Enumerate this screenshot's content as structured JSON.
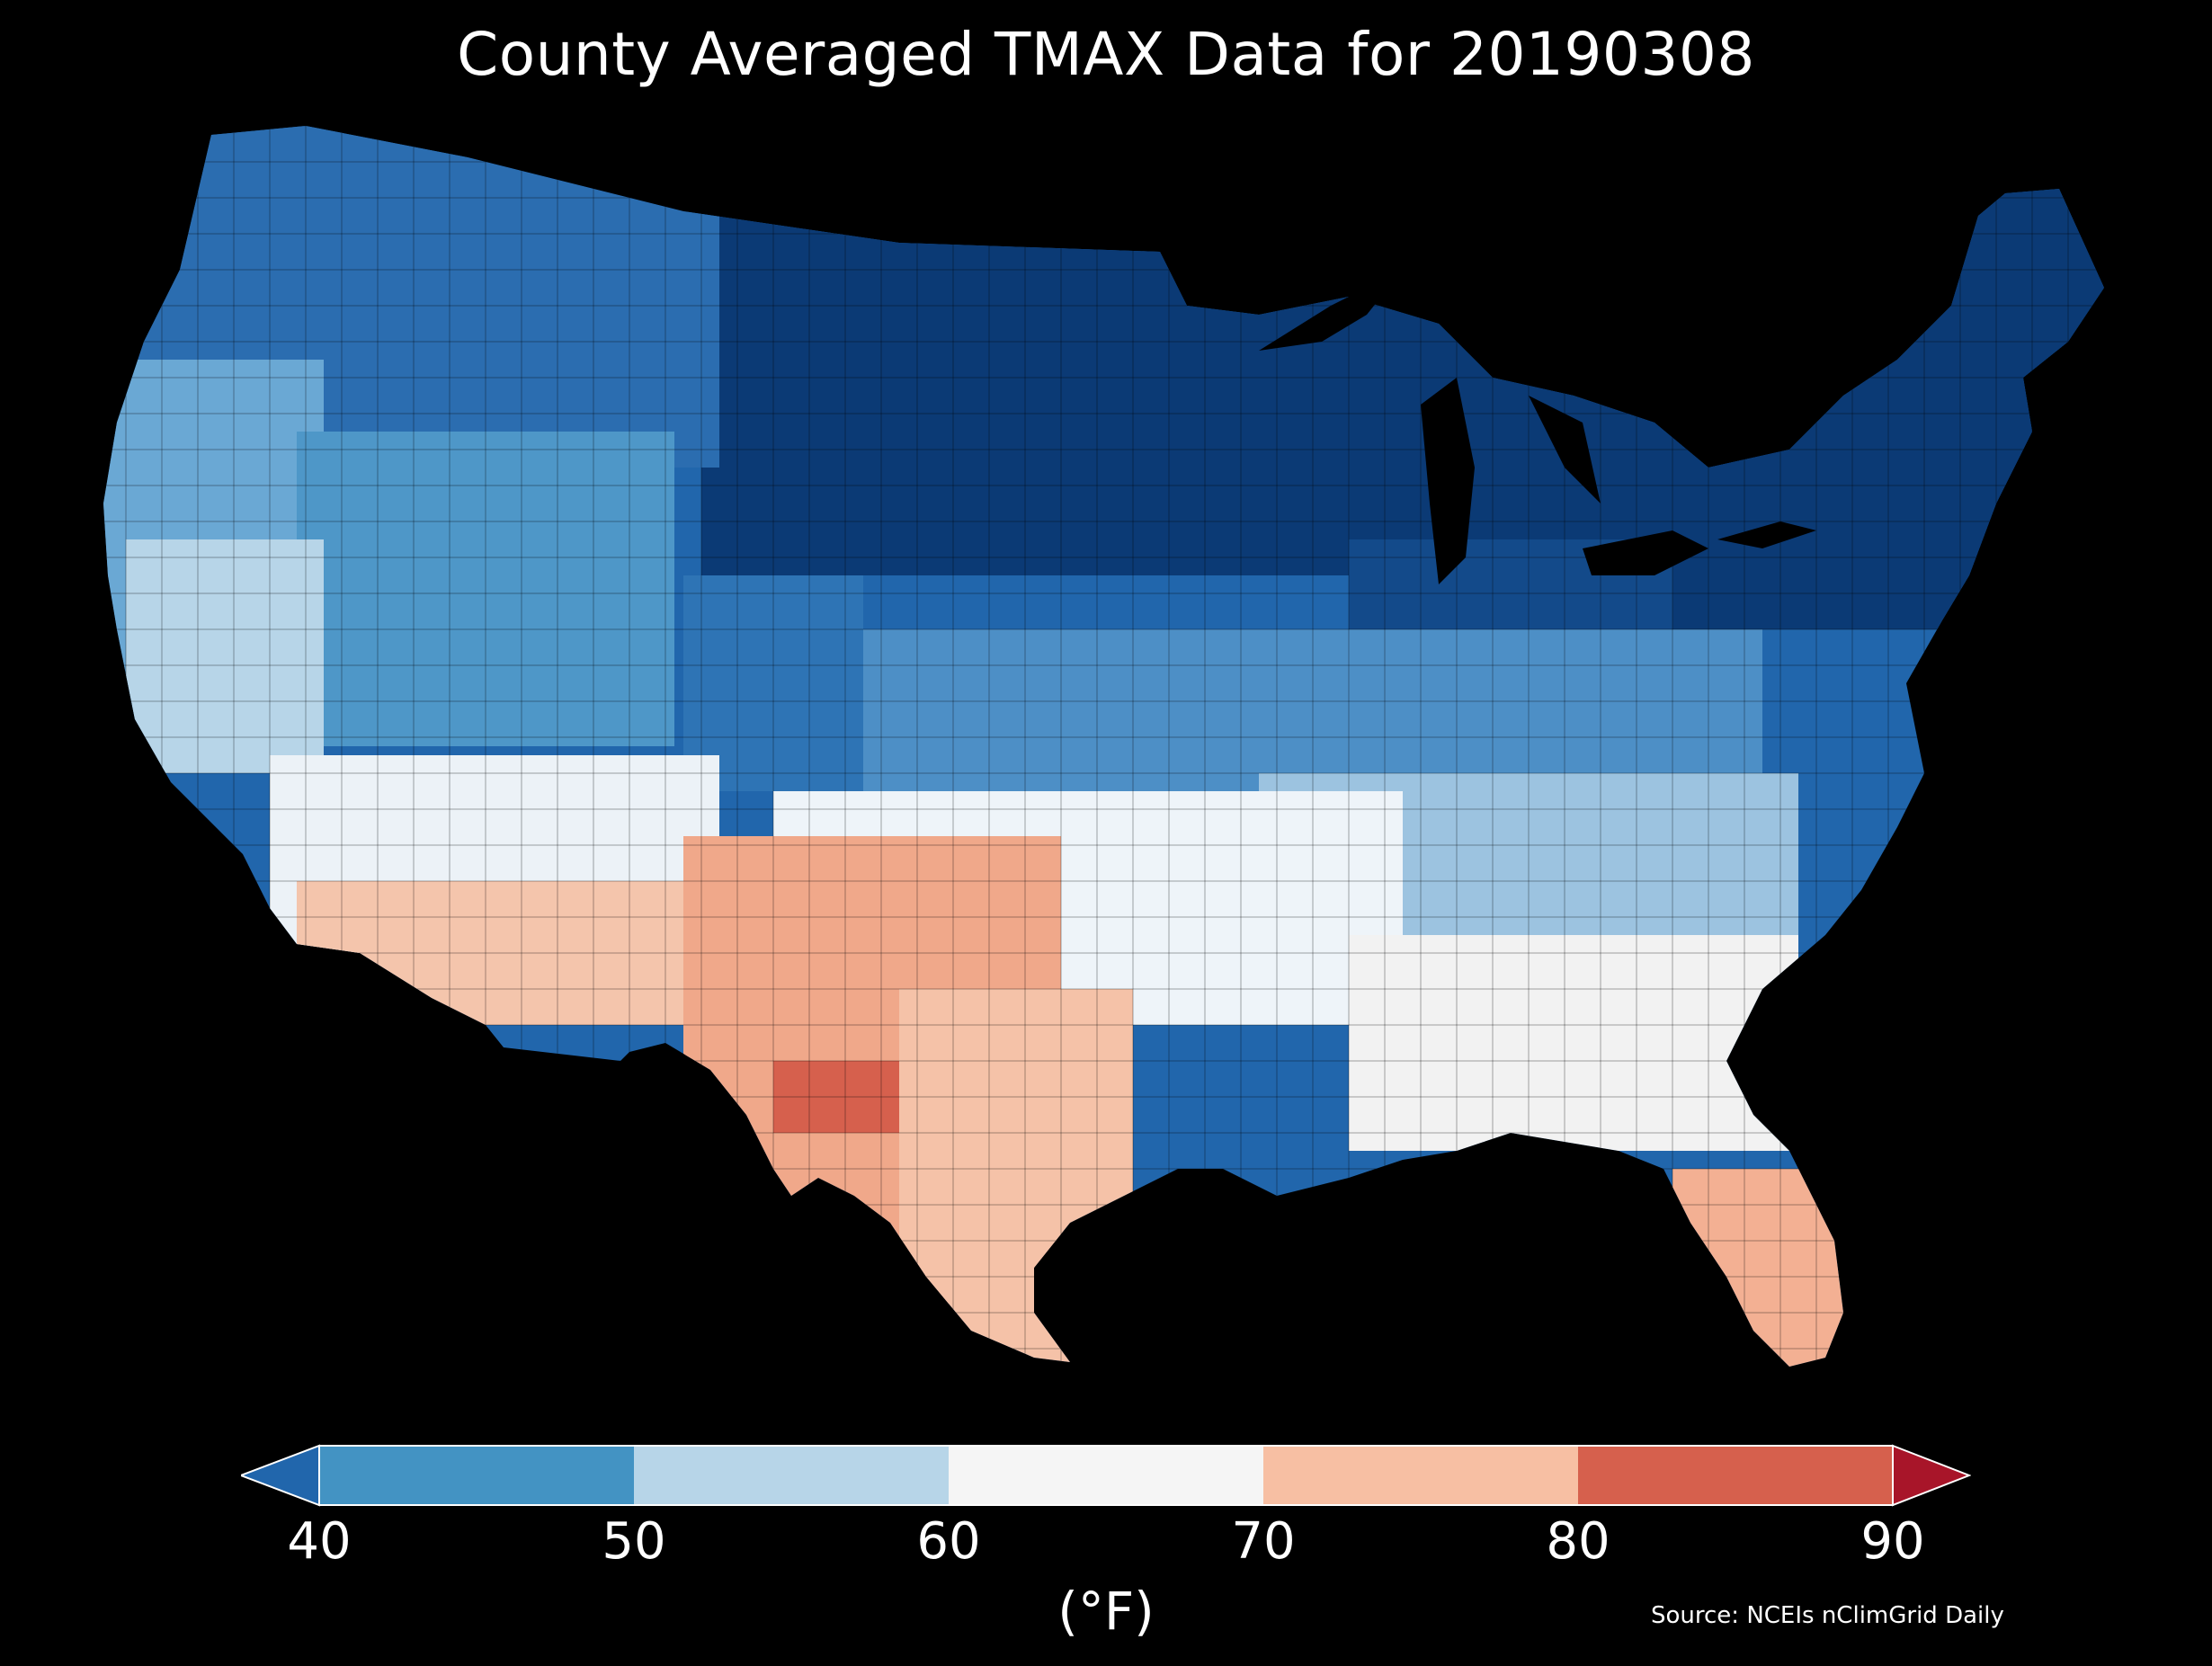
{
  "title": "County Averaged TMAX Data for 20190308",
  "source": "Source: NCEIs nClimGrid Daily",
  "colorbar": {
    "unit": "(°F)",
    "ticks": [
      "40",
      "50",
      "60",
      "70",
      "80",
      "90"
    ],
    "bins": [
      {
        "range": "<40",
        "color": "#2166ac"
      },
      {
        "range": "40-50",
        "color": "#4393c3"
      },
      {
        "range": "50-60",
        "color": "#b7d5e8"
      },
      {
        "range": "60-70",
        "color": "#f5f5f5"
      },
      {
        "range": "70-80",
        "color": "#f7bfa3"
      },
      {
        "range": "80-90",
        "color": "#d6604d"
      },
      {
        "range": ">90",
        "color": "#a81529"
      }
    ]
  },
  "map": {
    "region": "Contiguous United States counties",
    "background": "#000000",
    "pattern": "Coldest (darkest blue) across the northern tier and Northeast; warmest (orange-red) across west Texas, southern Arizona and south Florida."
  }
}
